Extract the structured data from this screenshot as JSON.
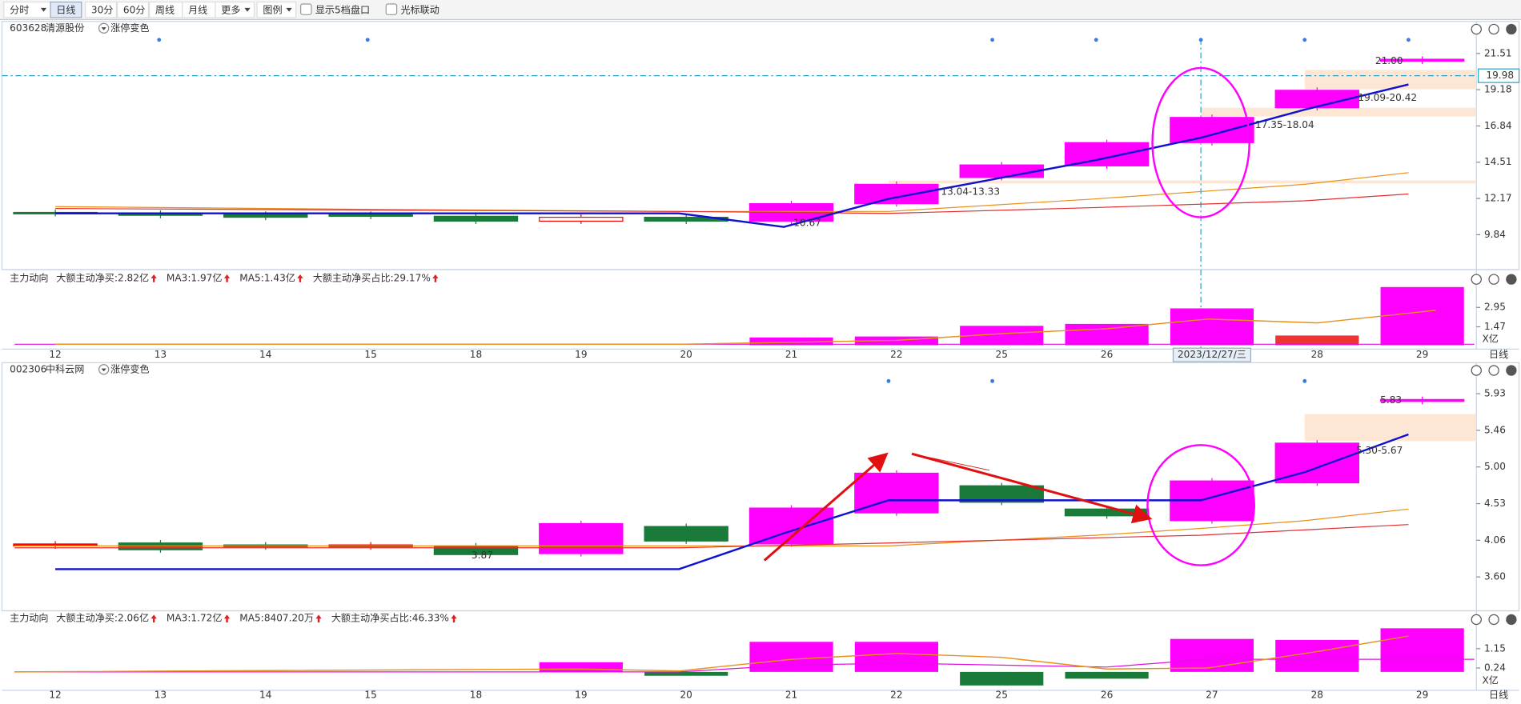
{
  "toolbar": {
    "items": [
      "分时",
      "日线",
      "30分",
      "60分",
      "周线",
      "月线",
      "更多",
      "图例"
    ],
    "checkboxes": [
      "显示5档盘口",
      "光标联动"
    ]
  },
  "panels": [
    {
      "code": "603628",
      "name": "清源股份",
      "option": "涨停变色",
      "price_ticks": [
        "21.51",
        "19.18",
        "16.84",
        "14.51",
        "12.17",
        "9.84"
      ],
      "current": "19.98",
      "annotations": [
        "21.00",
        "19.09-20.42",
        "17.35-18.04",
        "13.04-13.33",
        "10.67"
      ],
      "indicator": {
        "title": "主力动向",
        "items": [
          "大额主动净买:2.82亿",
          "MA3:1.97亿",
          "MA5:1.43亿",
          "大额主动净买占比:29.17%"
        ],
        "ticks": [
          "2.95",
          "1.47"
        ],
        "unit": "X亿"
      },
      "dates": [
        "12",
        "13",
        "14",
        "15",
        "18",
        "19",
        "20",
        "21",
        "22",
        "25",
        "26",
        "2023/12/27/三",
        "28",
        "29"
      ],
      "period": "日线"
    },
    {
      "code": "002306",
      "name": "中科云网",
      "option": "涨停变色",
      "price_ticks": [
        "5.93",
        "5.46",
        "5.00",
        "4.53",
        "4.06",
        "3.60"
      ],
      "annotations": [
        "5.83",
        "5.30-5.67",
        "3.87"
      ],
      "indicator": {
        "title": "主力动向",
        "items": [
          "大额主动净买:2.06亿",
          "MA3:1.72亿",
          "MA5:8407.20万",
          "大额主动净买占比:46.33%"
        ],
        "ticks": [
          "1.15",
          "0.24"
        ],
        "unit": "X亿"
      },
      "dates": [
        "12",
        "13",
        "14",
        "15",
        "18",
        "19",
        "20",
        "21",
        "22",
        "25",
        "26",
        "27",
        "28",
        "29"
      ],
      "period": "日线"
    }
  ]
}
